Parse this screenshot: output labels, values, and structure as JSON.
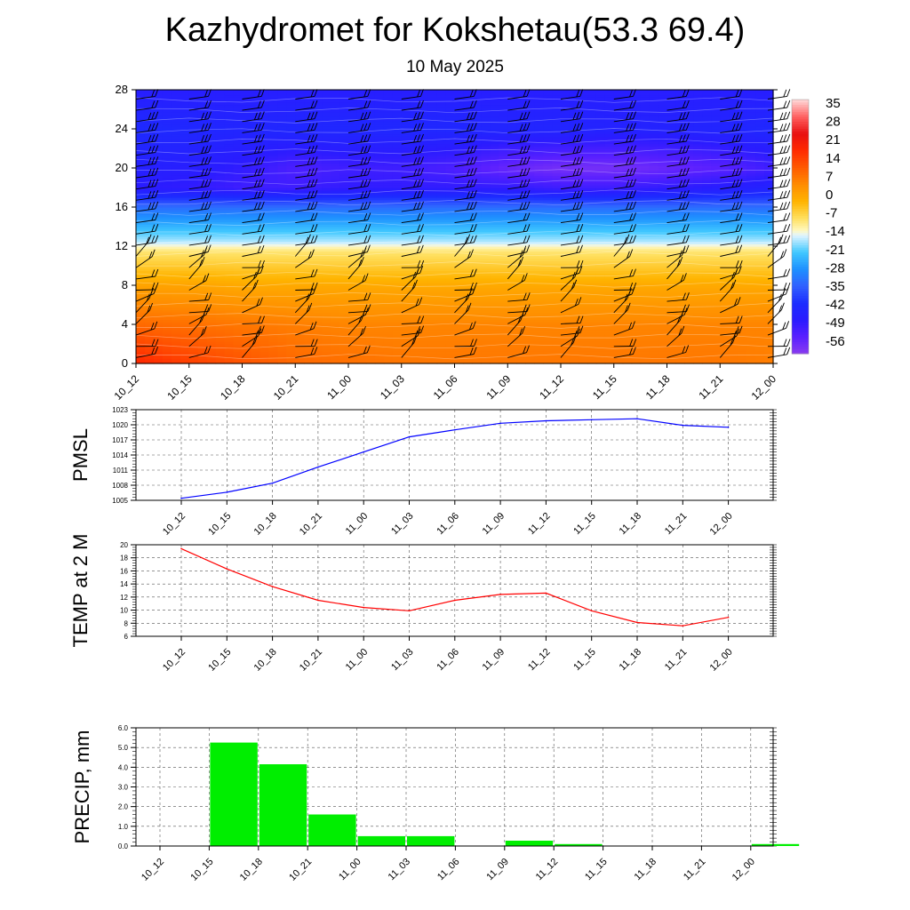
{
  "title": "Kazhydromet for Kokshetau(53.3 69.4)",
  "subtitle": "10 May 2025",
  "chart_data": [
    {
      "type": "heatmap",
      "description_key": "vertical-cross-section",
      "x_ticks": [
        "10_12",
        "10_15",
        "10_18",
        "10_21",
        "11_00",
        "11_03",
        "11_06",
        "11_09",
        "11_12",
        "11_15",
        "11_18",
        "11_21",
        "12_00"
      ],
      "y_ticks": [
        0,
        4,
        8,
        12,
        16,
        20,
        24,
        28
      ],
      "ylim": [
        0,
        28
      ],
      "colorbar_ticks": [
        "35",
        "28",
        "21",
        "14",
        "7",
        "0",
        "-7",
        "-14",
        "-21",
        "-28",
        "-35",
        "-42",
        "-49",
        "-56"
      ],
      "colorbar_range": [
        -63,
        42
      ],
      "colormap": [
        {
          "v": 42,
          "c": "#ffd8d8"
        },
        {
          "v": 35,
          "c": "#ff6060"
        },
        {
          "v": 28,
          "c": "#e81010"
        },
        {
          "v": 21,
          "c": "#ff2a00"
        },
        {
          "v": 14,
          "c": "#ff5a00"
        },
        {
          "v": 7,
          "c": "#ff8c00"
        },
        {
          "v": 0,
          "c": "#ffb400"
        },
        {
          "v": -7,
          "c": "#ffe060"
        },
        {
          "v": -12,
          "c": "#fff8c0"
        },
        {
          "v": -14,
          "c": "#e0f4ff"
        },
        {
          "v": -21,
          "c": "#40c8ff"
        },
        {
          "v": -28,
          "c": "#1e90ff"
        },
        {
          "v": -35,
          "c": "#3060ff"
        },
        {
          "v": -42,
          "c": "#1c2cff"
        },
        {
          "v": -49,
          "c": "#2a1cff"
        },
        {
          "v": -56,
          "c": "#5a20ff"
        },
        {
          "v": -63,
          "c": "#8a3cf0"
        }
      ],
      "temperature_profile": [
        {
          "level": 0,
          "values": [
            22,
            18,
            15,
            12,
            11,
            10,
            10,
            10,
            10,
            10,
            10,
            10,
            9
          ]
        },
        {
          "level": 4,
          "values": [
            12,
            11,
            10,
            9,
            8,
            8,
            8,
            8,
            8,
            8,
            8,
            8,
            8
          ]
        },
        {
          "level": 8,
          "values": [
            3,
            3,
            2,
            2,
            2,
            2,
            2,
            2,
            2,
            2,
            2,
            2,
            2
          ]
        },
        {
          "level": 11.5,
          "values": [
            -8,
            -8,
            -8,
            -8,
            -8,
            -8,
            -8,
            -8,
            -8,
            -8,
            -8,
            -8,
            -8
          ]
        },
        {
          "level": 12.5,
          "values": [
            -16,
            -16,
            -16,
            -16,
            -16,
            -16,
            -16,
            -16,
            -16,
            -16,
            -16,
            -16,
            -16
          ]
        },
        {
          "level": 16,
          "values": [
            -33,
            -33,
            -33,
            -33,
            -33,
            -33,
            -33,
            -33,
            -33,
            -33,
            -33,
            -33,
            -33
          ]
        },
        {
          "level": 18,
          "values": [
            -49,
            -50,
            -52,
            -52,
            -50,
            -50,
            -50,
            -50,
            -52,
            -52,
            -50,
            -48,
            -46
          ]
        },
        {
          "level": 20,
          "values": [
            -47,
            -48,
            -50,
            -54,
            -52,
            -52,
            -54,
            -58,
            -60,
            -60,
            -58,
            -56,
            -52
          ]
        },
        {
          "level": 24,
          "values": [
            -43,
            -44,
            -45,
            -44,
            -44,
            -44,
            -44,
            -45,
            -45,
            -46,
            -46,
            -45,
            -44
          ]
        },
        {
          "level": 28,
          "values": [
            -48,
            -48,
            -48,
            -48,
            -48,
            -48,
            -48,
            -48,
            -48,
            -48,
            -48,
            -48,
            -48
          ]
        }
      ]
    },
    {
      "type": "line",
      "ylabel": "PMSL",
      "categories": [
        "10_12",
        "10_15",
        "10_18",
        "10_21",
        "11_00",
        "11_03",
        "11_06",
        "11_09",
        "11_12",
        "11_15",
        "11_18",
        "11_21",
        "12_00"
      ],
      "y_ticks": [
        "1005",
        "1008",
        "1011",
        "1014",
        "1017",
        "1020",
        "1023"
      ],
      "ylim": [
        1005,
        1023
      ],
      "values": [
        1005.4,
        1006.6,
        1008.4,
        1011.6,
        1014.6,
        1017.6,
        1019.0,
        1020.3,
        1020.8,
        1021.0,
        1021.2,
        1019.9,
        1019.5
      ],
      "color": "#0000ff"
    },
    {
      "type": "line",
      "ylabel": "TEMP at 2 M",
      "categories": [
        "10_12",
        "10_15",
        "10_18",
        "10_21",
        "11_00",
        "11_03",
        "11_06",
        "11_09",
        "11_12",
        "11_15",
        "11_18",
        "11_21",
        "12_00"
      ],
      "y_ticks": [
        "6",
        "8",
        "10",
        "12",
        "14",
        "16",
        "18",
        "20"
      ],
      "ylim": [
        6,
        20
      ],
      "values": [
        19.4,
        16.3,
        13.6,
        11.5,
        10.4,
        9.9,
        11.5,
        12.4,
        12.6,
        9.9,
        8.1,
        7.6,
        8.9
      ],
      "color": "#ff0000"
    },
    {
      "type": "bar",
      "ylabel": "PRECIP, mm",
      "categories": [
        "10_12",
        "10_15",
        "10_18",
        "10_21",
        "11_00",
        "11_03",
        "11_06",
        "11_09",
        "11_12",
        "11_15",
        "11_18",
        "11_21",
        "12_00"
      ],
      "y_ticks": [
        "0.0",
        "1.0",
        "2.0",
        "3.0",
        "4.0",
        "5.0",
        "6.0"
      ],
      "ylim": [
        0,
        6
      ],
      "values": [
        0,
        5.25,
        4.15,
        1.6,
        0.5,
        0.5,
        0,
        0.27,
        0.1,
        0,
        0,
        0,
        0.1
      ],
      "color": "#00ee00"
    }
  ]
}
